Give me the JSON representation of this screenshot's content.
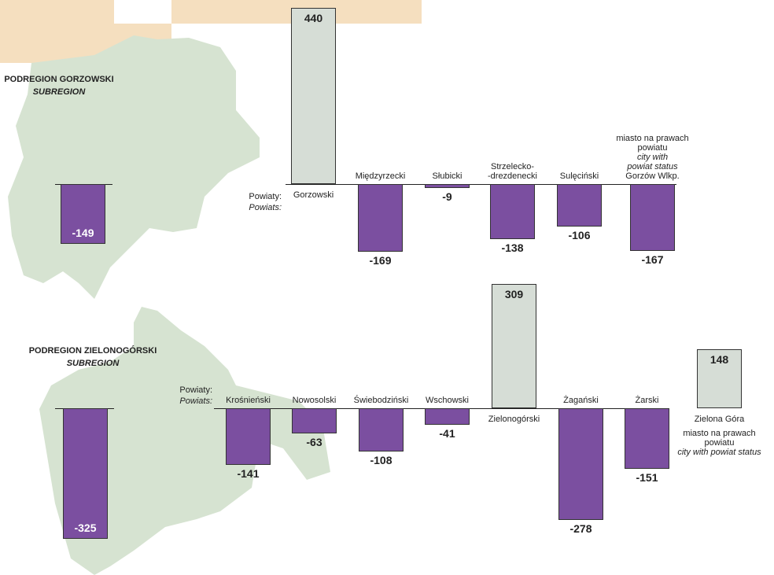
{
  "chart_data": [
    {
      "type": "bar",
      "title": "PODREGION GORZOWSKI",
      "subtitle": "SUBREGION",
      "subregion_value": -149,
      "axis_label": "Powiaty:",
      "axis_label_en": "Powiats:",
      "categories": [
        "Gorzowski",
        "Międzyrzecki",
        "Słubicki",
        "Strzelecko-\n-drezdenecki",
        "Sulęciński",
        "Gorzów Wlkp."
      ],
      "values": [
        440,
        -169,
        -9,
        -138,
        -106,
        -167
      ],
      "city_note": {
        "pl": "miasto na prawach\npowiatu",
        "en": "city with\npowiat status"
      },
      "colors": {
        "positive": "#d6ddd6",
        "negative": "#7b4fa0"
      }
    },
    {
      "type": "bar",
      "title": "PODREGION ZIELONOGÓRSKI",
      "subtitle": "SUBREGION",
      "subregion_value": -325,
      "axis_label": "Powiaty:",
      "axis_label_en": "Powiats:",
      "categories": [
        "Krośnieński",
        "Nowosolski",
        "Świebodziński",
        "Wschowski",
        "Zielonogórski",
        "Żagański",
        "Żarski",
        "Zielona Góra"
      ],
      "values": [
        -141,
        -63,
        -108,
        -41,
        309,
        -278,
        -151,
        148
      ],
      "city_note": {
        "pl": "miasto na prawach\npowiatu",
        "en": "city with powiat status"
      },
      "colors": {
        "positive": "#d6ddd6",
        "negative": "#7b4fa0"
      }
    }
  ]
}
